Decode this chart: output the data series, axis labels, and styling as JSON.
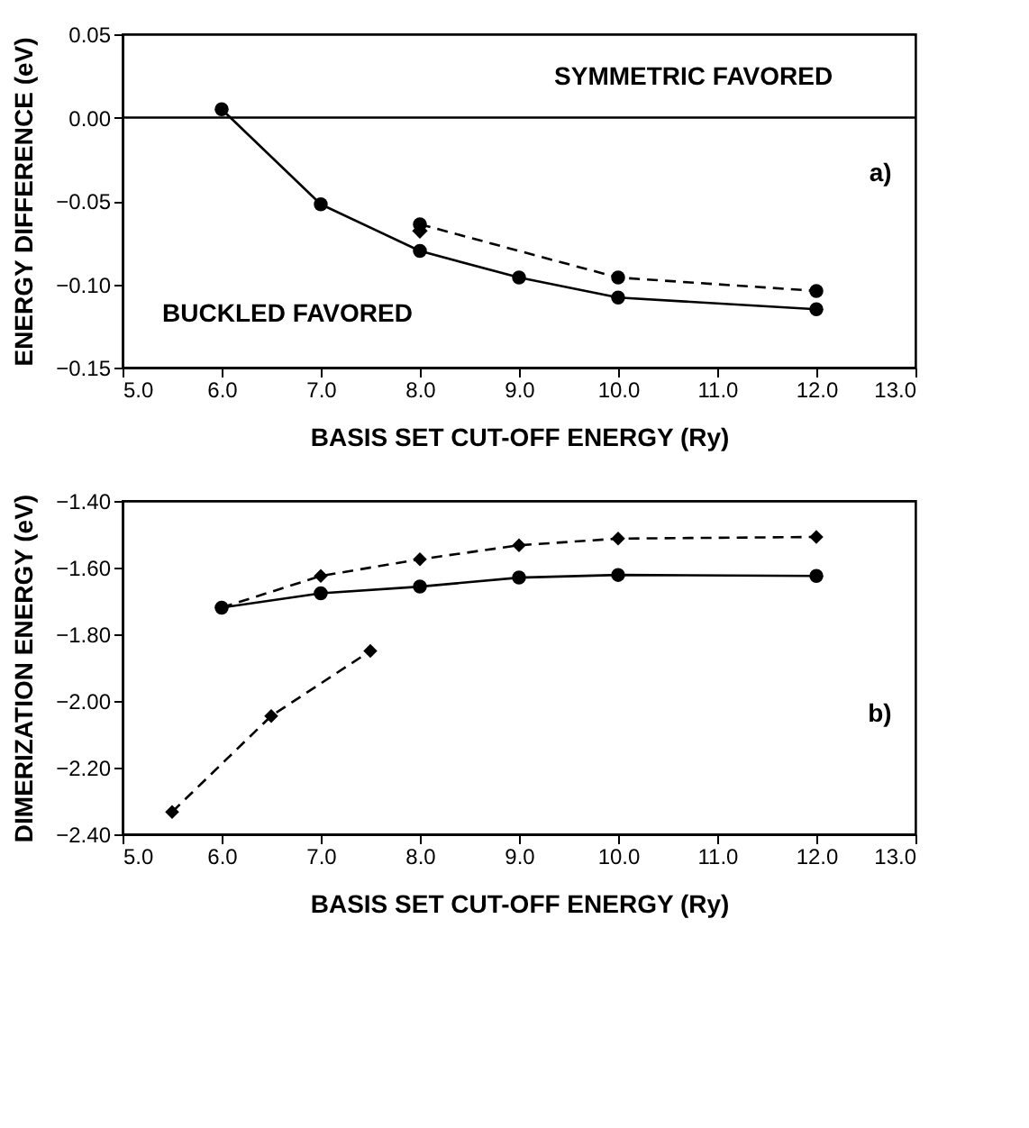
{
  "chart_data": [
    {
      "type": "line",
      "xlabel": "BASIS SET CUT-OFF ENERGY (Ry)",
      "ylabel": "ENERGY DIFFERENCE (eV)",
      "xlim": [
        5.0,
        13.0
      ],
      "xticks": [
        {
          "value": 5,
          "label": "5.0"
        },
        {
          "value": 6,
          "label": "6.0"
        },
        {
          "value": 7,
          "label": "7.0"
        },
        {
          "value": 8,
          "label": "8.0"
        },
        {
          "value": 9,
          "label": "9.0"
        },
        {
          "value": 10,
          "label": "10.0"
        },
        {
          "value": 11,
          "label": "11.0"
        },
        {
          "value": 12,
          "label": "12.0"
        },
        {
          "value": 13,
          "label": "13.0"
        }
      ],
      "ylim": [
        -0.15,
        0.05
      ],
      "yticks": [
        {
          "value": -0.15,
          "label": "−0.15"
        },
        {
          "value": -0.1,
          "label": "−0.10"
        },
        {
          "value": -0.05,
          "label": "−0.05"
        },
        {
          "value": 0,
          "label": "0.00"
        },
        {
          "value": 0.05,
          "label": "0.05"
        }
      ],
      "grid": false,
      "ref_lines": [
        {
          "axis": "y",
          "value": 0,
          "color": "#000000",
          "line_style": "solid"
        }
      ],
      "annotations": [
        "SYMMETRIC FAVORED",
        "BUCKLED FAVORED",
        "a)"
      ],
      "series": [
        {
          "color": "#000000",
          "line_style": "solid",
          "marker": "circle",
          "x": [
            6,
            7,
            8,
            9,
            10,
            12
          ],
          "values": [
            0.005,
            -0.052,
            -0.08,
            -0.096,
            -0.108,
            -0.115
          ]
        },
        {
          "color": "#000000",
          "line_style": "dashed",
          "marker": "circle",
          "x": [
            8,
            10,
            12
          ],
          "values": [
            -0.064,
            -0.096,
            -0.104
          ]
        },
        {
          "type": "scatter",
          "color": "#000000",
          "marker": "diamond",
          "x": [
            8
          ],
          "values": [
            -0.068
          ]
        }
      ]
    },
    {
      "type": "line",
      "xlabel": "BASIS SET CUT-OFF ENERGY (Ry)",
      "ylabel": "DIMERIZATION ENERGY (eV)",
      "xlim": [
        5.0,
        13.0
      ],
      "xticks": [
        {
          "value": 5,
          "label": "5.0"
        },
        {
          "value": 6,
          "label": "6.0"
        },
        {
          "value": 7,
          "label": "7.0"
        },
        {
          "value": 8,
          "label": "8.0"
        },
        {
          "value": 9,
          "label": "9.0"
        },
        {
          "value": 10,
          "label": "10.0"
        },
        {
          "value": 11,
          "label": "11.0"
        },
        {
          "value": 12,
          "label": "12.0"
        },
        {
          "value": 13,
          "label": "13.0"
        }
      ],
      "ylim": [
        -2.4,
        -1.4
      ],
      "yticks": [
        {
          "value": -2.4,
          "label": "−2.40"
        },
        {
          "value": -2.2,
          "label": "−2.20"
        },
        {
          "value": -2.0,
          "label": "−2.00"
        },
        {
          "value": -1.8,
          "label": "−1.80"
        },
        {
          "value": -1.6,
          "label": "−1.60"
        },
        {
          "value": -1.4,
          "label": "−1.40"
        }
      ],
      "grid": false,
      "annotations": [
        "b)"
      ],
      "series": [
        {
          "color": "#000000",
          "line_style": "dashed",
          "marker": "diamond",
          "x": [
            6,
            7,
            8,
            9,
            10,
            12
          ],
          "values": [
            -1.72,
            -1.625,
            -1.575,
            -1.533,
            -1.513,
            -1.508
          ]
        },
        {
          "color": "#000000",
          "line_style": "solid",
          "marker": "circle",
          "x": [
            6,
            7,
            8,
            9,
            10,
            12
          ],
          "values": [
            -1.72,
            -1.677,
            -1.657,
            -1.63,
            -1.622,
            -1.625
          ]
        },
        {
          "color": "#000000",
          "line_style": "dashed",
          "marker": "diamond",
          "x": [
            5.5,
            6.5,
            7.5
          ],
          "values": [
            -2.333,
            -2.045,
            -1.85
          ]
        }
      ]
    }
  ]
}
